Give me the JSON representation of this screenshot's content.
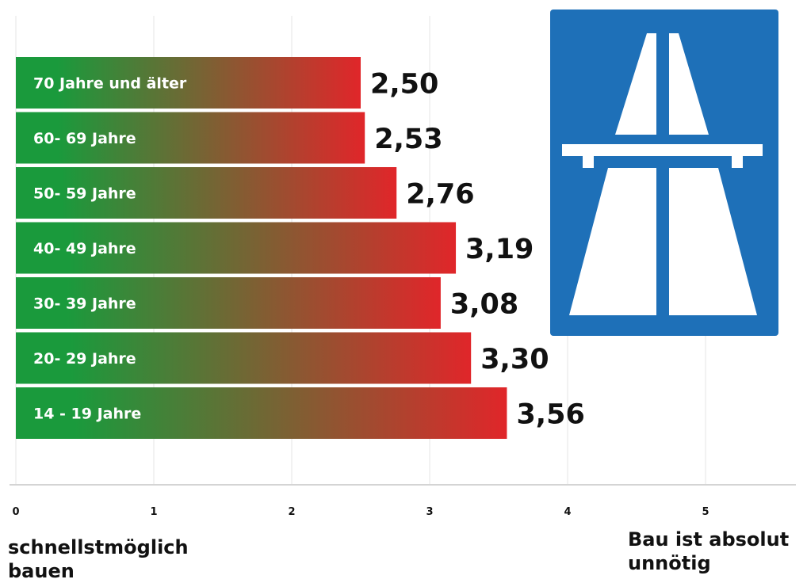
{
  "chart_data": {
    "type": "bar",
    "orientation": "horizontal",
    "categories": [
      "70 Jahre und älter",
      "60- 69 Jahre",
      "50- 59 Jahre",
      "40- 49 Jahre",
      "30- 39 Jahre",
      "20- 29 Jahre",
      "14 - 19 Jahre"
    ],
    "values": [
      2.5,
      2.53,
      2.76,
      3.19,
      3.08,
      3.3,
      3.56
    ],
    "value_labels": [
      "2,50",
      "2,53",
      "2,76",
      "3,19",
      "3,08",
      "3,30",
      "3,56"
    ],
    "xlim": [
      0,
      5
    ],
    "x_ticks": [
      "0",
      "1",
      "2",
      "3",
      "4",
      "5"
    ],
    "scale_min_label": "schnellstmöglich bauen",
    "scale_max_label": "Bau ist absolut unnötig",
    "gradient_colors": [
      "#1a9a3c",
      "#e0262a"
    ],
    "gridlines": true
  },
  "sign": {
    "icon": "autobahn-sign-icon",
    "background_color": "#1e70b8",
    "symbol_color": "#ffffff"
  }
}
